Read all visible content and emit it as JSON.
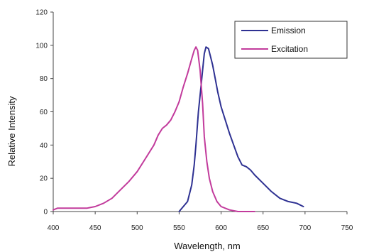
{
  "chart_data": {
    "type": "line",
    "title": "",
    "xlabel": "Wavelength, nm",
    "ylabel": "Relative Intensity",
    "xlim": [
      400,
      750
    ],
    "ylim": [
      0,
      120
    ],
    "x_ticks": [
      "400",
      "450",
      "500",
      "550",
      "600",
      "650",
      "700",
      "750"
    ],
    "y_ticks": [
      "0",
      "20",
      "40",
      "60",
      "80",
      "100",
      "120"
    ],
    "grid": false,
    "legend_position": "top-right",
    "series": [
      {
        "name": "Emission",
        "color": "#2e3192",
        "x": [
          550,
          555,
          560,
          565,
          568,
          570,
          573,
          576,
          578,
          580,
          582,
          585,
          588,
          590,
          593,
          596,
          600,
          605,
          610,
          615,
          620,
          625,
          630,
          635,
          640,
          650,
          660,
          670,
          680,
          690,
          698
        ],
        "y": [
          0,
          3,
          6,
          16,
          28,
          40,
          60,
          75,
          85,
          95,
          99,
          98,
          92,
          88,
          80,
          72,
          63,
          55,
          47,
          40,
          33,
          28,
          27,
          25,
          22,
          17,
          12,
          8,
          6,
          5,
          3
        ]
      },
      {
        "name": "Excitation",
        "color": "#c23b9c",
        "x": [
          400,
          405,
          420,
          440,
          450,
          460,
          470,
          480,
          490,
          500,
          510,
          520,
          525,
          530,
          535,
          540,
          545,
          550,
          555,
          560,
          565,
          568,
          570,
          572,
          575,
          578,
          580,
          583,
          586,
          590,
          595,
          600,
          610,
          620,
          630,
          640
        ],
        "y": [
          1,
          2,
          2,
          2,
          3,
          5,
          8,
          13,
          18,
          24,
          32,
          40,
          46,
          50,
          52,
          55,
          60,
          66,
          75,
          83,
          92,
          97,
          99,
          97,
          85,
          65,
          45,
          30,
          20,
          12,
          6,
          3,
          1,
          0,
          0,
          0
        ]
      }
    ]
  }
}
